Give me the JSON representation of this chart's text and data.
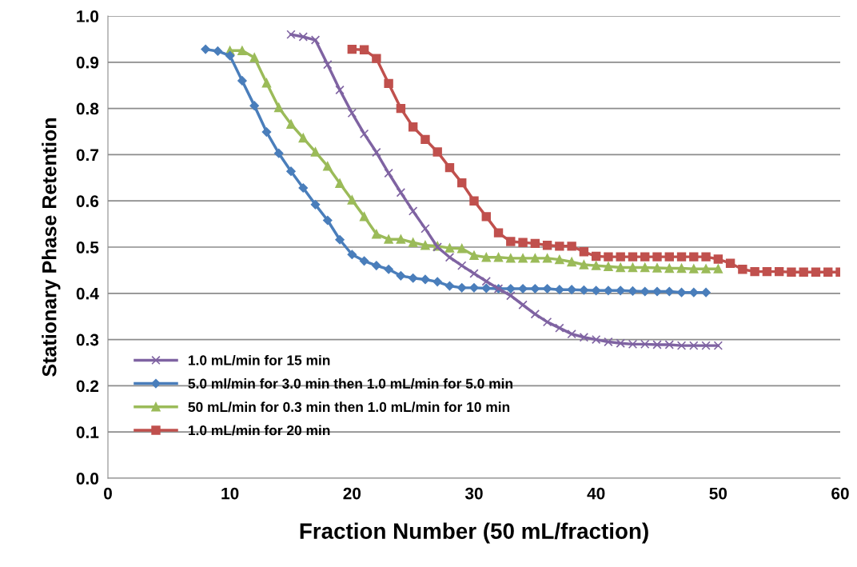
{
  "chart_data": {
    "type": "line",
    "xlabel": "Fraction Number (50 mL/fraction)",
    "ylabel": "Stationary Phase Retention",
    "xlim": [
      0,
      60
    ],
    "xticks": [
      0,
      10,
      20,
      30,
      40,
      50,
      60
    ],
    "ylim": [
      0.0,
      1.0
    ],
    "yticks": [
      {
        "value": 0.0,
        "label": "0.0"
      },
      0.1,
      0.2,
      0.3,
      0.4,
      0.5,
      0.6,
      0.7,
      0.8,
      0.9,
      {
        "value": 1.0,
        "label": "1.0"
      }
    ],
    "grid": "y",
    "legend": "bottom left",
    "line_style": "solid",
    "series": [
      {
        "name": "1.0 mL/min for 15 min",
        "color": "#7f63a2",
        "marker": "cross",
        "x": [
          15,
          16,
          17,
          18,
          19,
          20,
          21,
          22,
          23,
          24,
          25,
          26,
          27,
          28,
          29,
          30,
          31,
          32,
          33,
          34,
          35,
          36,
          37,
          38,
          39,
          40,
          41,
          42,
          43,
          44,
          45,
          46,
          47,
          48,
          49,
          50
        ],
        "values": [
          0.96,
          0.955,
          0.948,
          0.895,
          0.84,
          0.79,
          0.745,
          0.705,
          0.66,
          0.618,
          0.578,
          0.54,
          0.5,
          0.478,
          0.46,
          0.443,
          0.426,
          0.41,
          0.395,
          0.375,
          0.355,
          0.338,
          0.325,
          0.312,
          0.305,
          0.3,
          0.295,
          0.292,
          0.29,
          0.29,
          0.289,
          0.289,
          0.287,
          0.287,
          0.287,
          0.287
        ]
      },
      {
        "name": "5.0 ml/min for 3.0 min then 1.0 mL/min for 5.0 min",
        "color": "#4a7ebb",
        "marker": "diamond",
        "x": [
          8,
          9,
          10,
          11,
          12,
          13,
          14,
          15,
          16,
          17,
          18,
          19,
          20,
          21,
          22,
          23,
          24,
          25,
          26,
          27,
          28,
          29,
          30,
          31,
          32,
          33,
          34,
          35,
          36,
          37,
          38,
          39,
          40,
          41,
          42,
          43,
          44,
          45,
          46,
          47,
          48,
          49
        ],
        "values": [
          0.928,
          0.924,
          0.914,
          0.86,
          0.806,
          0.749,
          0.703,
          0.664,
          0.628,
          0.592,
          0.558,
          0.516,
          0.484,
          0.47,
          0.46,
          0.452,
          0.438,
          0.433,
          0.43,
          0.425,
          0.416,
          0.412,
          0.412,
          0.411,
          0.41,
          0.41,
          0.41,
          0.41,
          0.41,
          0.408,
          0.408,
          0.407,
          0.406,
          0.406,
          0.406,
          0.405,
          0.404,
          0.404,
          0.404,
          0.402,
          0.402,
          0.402
        ]
      },
      {
        "name": "50 mL/min for 0.3 min then 1.0 mL/min for 10 min",
        "color": "#9bbb59",
        "marker": "triangle",
        "x": [
          10,
          11,
          12,
          13,
          14,
          15,
          16,
          17,
          18,
          19,
          20,
          21,
          22,
          23,
          24,
          25,
          26,
          27,
          28,
          29,
          30,
          31,
          32,
          33,
          34,
          35,
          36,
          37,
          38,
          39,
          40,
          41,
          42,
          43,
          44,
          45,
          46,
          47,
          48,
          49,
          50
        ],
        "values": [
          0.925,
          0.925,
          0.91,
          0.855,
          0.802,
          0.766,
          0.736,
          0.706,
          0.675,
          0.638,
          0.602,
          0.566,
          0.528,
          0.517,
          0.517,
          0.51,
          0.504,
          0.502,
          0.498,
          0.497,
          0.482,
          0.478,
          0.478,
          0.476,
          0.476,
          0.476,
          0.476,
          0.473,
          0.468,
          0.462,
          0.46,
          0.458,
          0.456,
          0.456,
          0.456,
          0.455,
          0.454,
          0.454,
          0.453,
          0.453,
          0.453
        ]
      },
      {
        "name": "1.0 mL/min for 20 min",
        "color": "#c0504d",
        "marker": "square",
        "x": [
          20,
          21,
          22,
          23,
          24,
          25,
          26,
          27,
          28,
          29,
          30,
          31,
          32,
          33,
          34,
          35,
          36,
          37,
          38,
          39,
          40,
          41,
          42,
          43,
          44,
          45,
          46,
          47,
          48,
          49,
          50,
          51,
          52,
          53,
          54,
          55,
          56,
          57,
          58,
          59,
          60
        ],
        "values": [
          0.928,
          0.927,
          0.908,
          0.854,
          0.8,
          0.76,
          0.733,
          0.706,
          0.672,
          0.639,
          0.6,
          0.566,
          0.531,
          0.512,
          0.51,
          0.508,
          0.504,
          0.502,
          0.502,
          0.49,
          0.48,
          0.479,
          0.479,
          0.479,
          0.479,
          0.479,
          0.479,
          0.479,
          0.479,
          0.479,
          0.474,
          0.465,
          0.452,
          0.447,
          0.447,
          0.447,
          0.446,
          0.446,
          0.446,
          0.446,
          0.446
        ]
      }
    ]
  }
}
